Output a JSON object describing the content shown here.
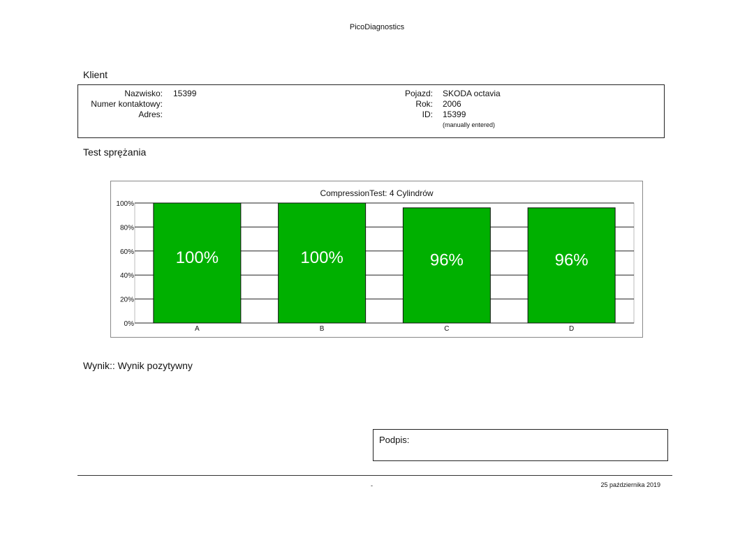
{
  "header": {
    "app_title": "PicoDiagnostics"
  },
  "client": {
    "section_title": "Klient",
    "labels": {
      "surname": "Nazwisko:",
      "contact": "Numer kontaktowy:",
      "address": "Adres:"
    },
    "values": {
      "surname": "15399",
      "contact": "",
      "address": ""
    }
  },
  "vehicle": {
    "labels": {
      "vehicle": "Pojazd:",
      "year": "Rok:",
      "id": "ID:"
    },
    "values": {
      "vehicle": "SKODA octavia",
      "year": "2006",
      "id": "15399"
    },
    "note": "(manually entered)"
  },
  "test": {
    "section_title": "Test sprężania"
  },
  "chart_data": {
    "type": "bar",
    "title": "CompressionTest: 4 Cylindrów",
    "categories": [
      "A",
      "B",
      "C",
      "D"
    ],
    "values": [
      100,
      100,
      96,
      96
    ],
    "value_labels": [
      "100%",
      "100%",
      "96%",
      "96%"
    ],
    "y_ticks": [
      "0%",
      "20%",
      "40%",
      "60%",
      "80%",
      "100%"
    ],
    "ylim": [
      0,
      100
    ],
    "grid": true,
    "bar_color": "#00b000",
    "xlabel": "",
    "ylabel": ""
  },
  "result": {
    "text": "Wynik:: Wynik pozytywny"
  },
  "signature": {
    "label": "Podpis:"
  },
  "footer": {
    "center": "-",
    "date": "25 października 2019"
  }
}
